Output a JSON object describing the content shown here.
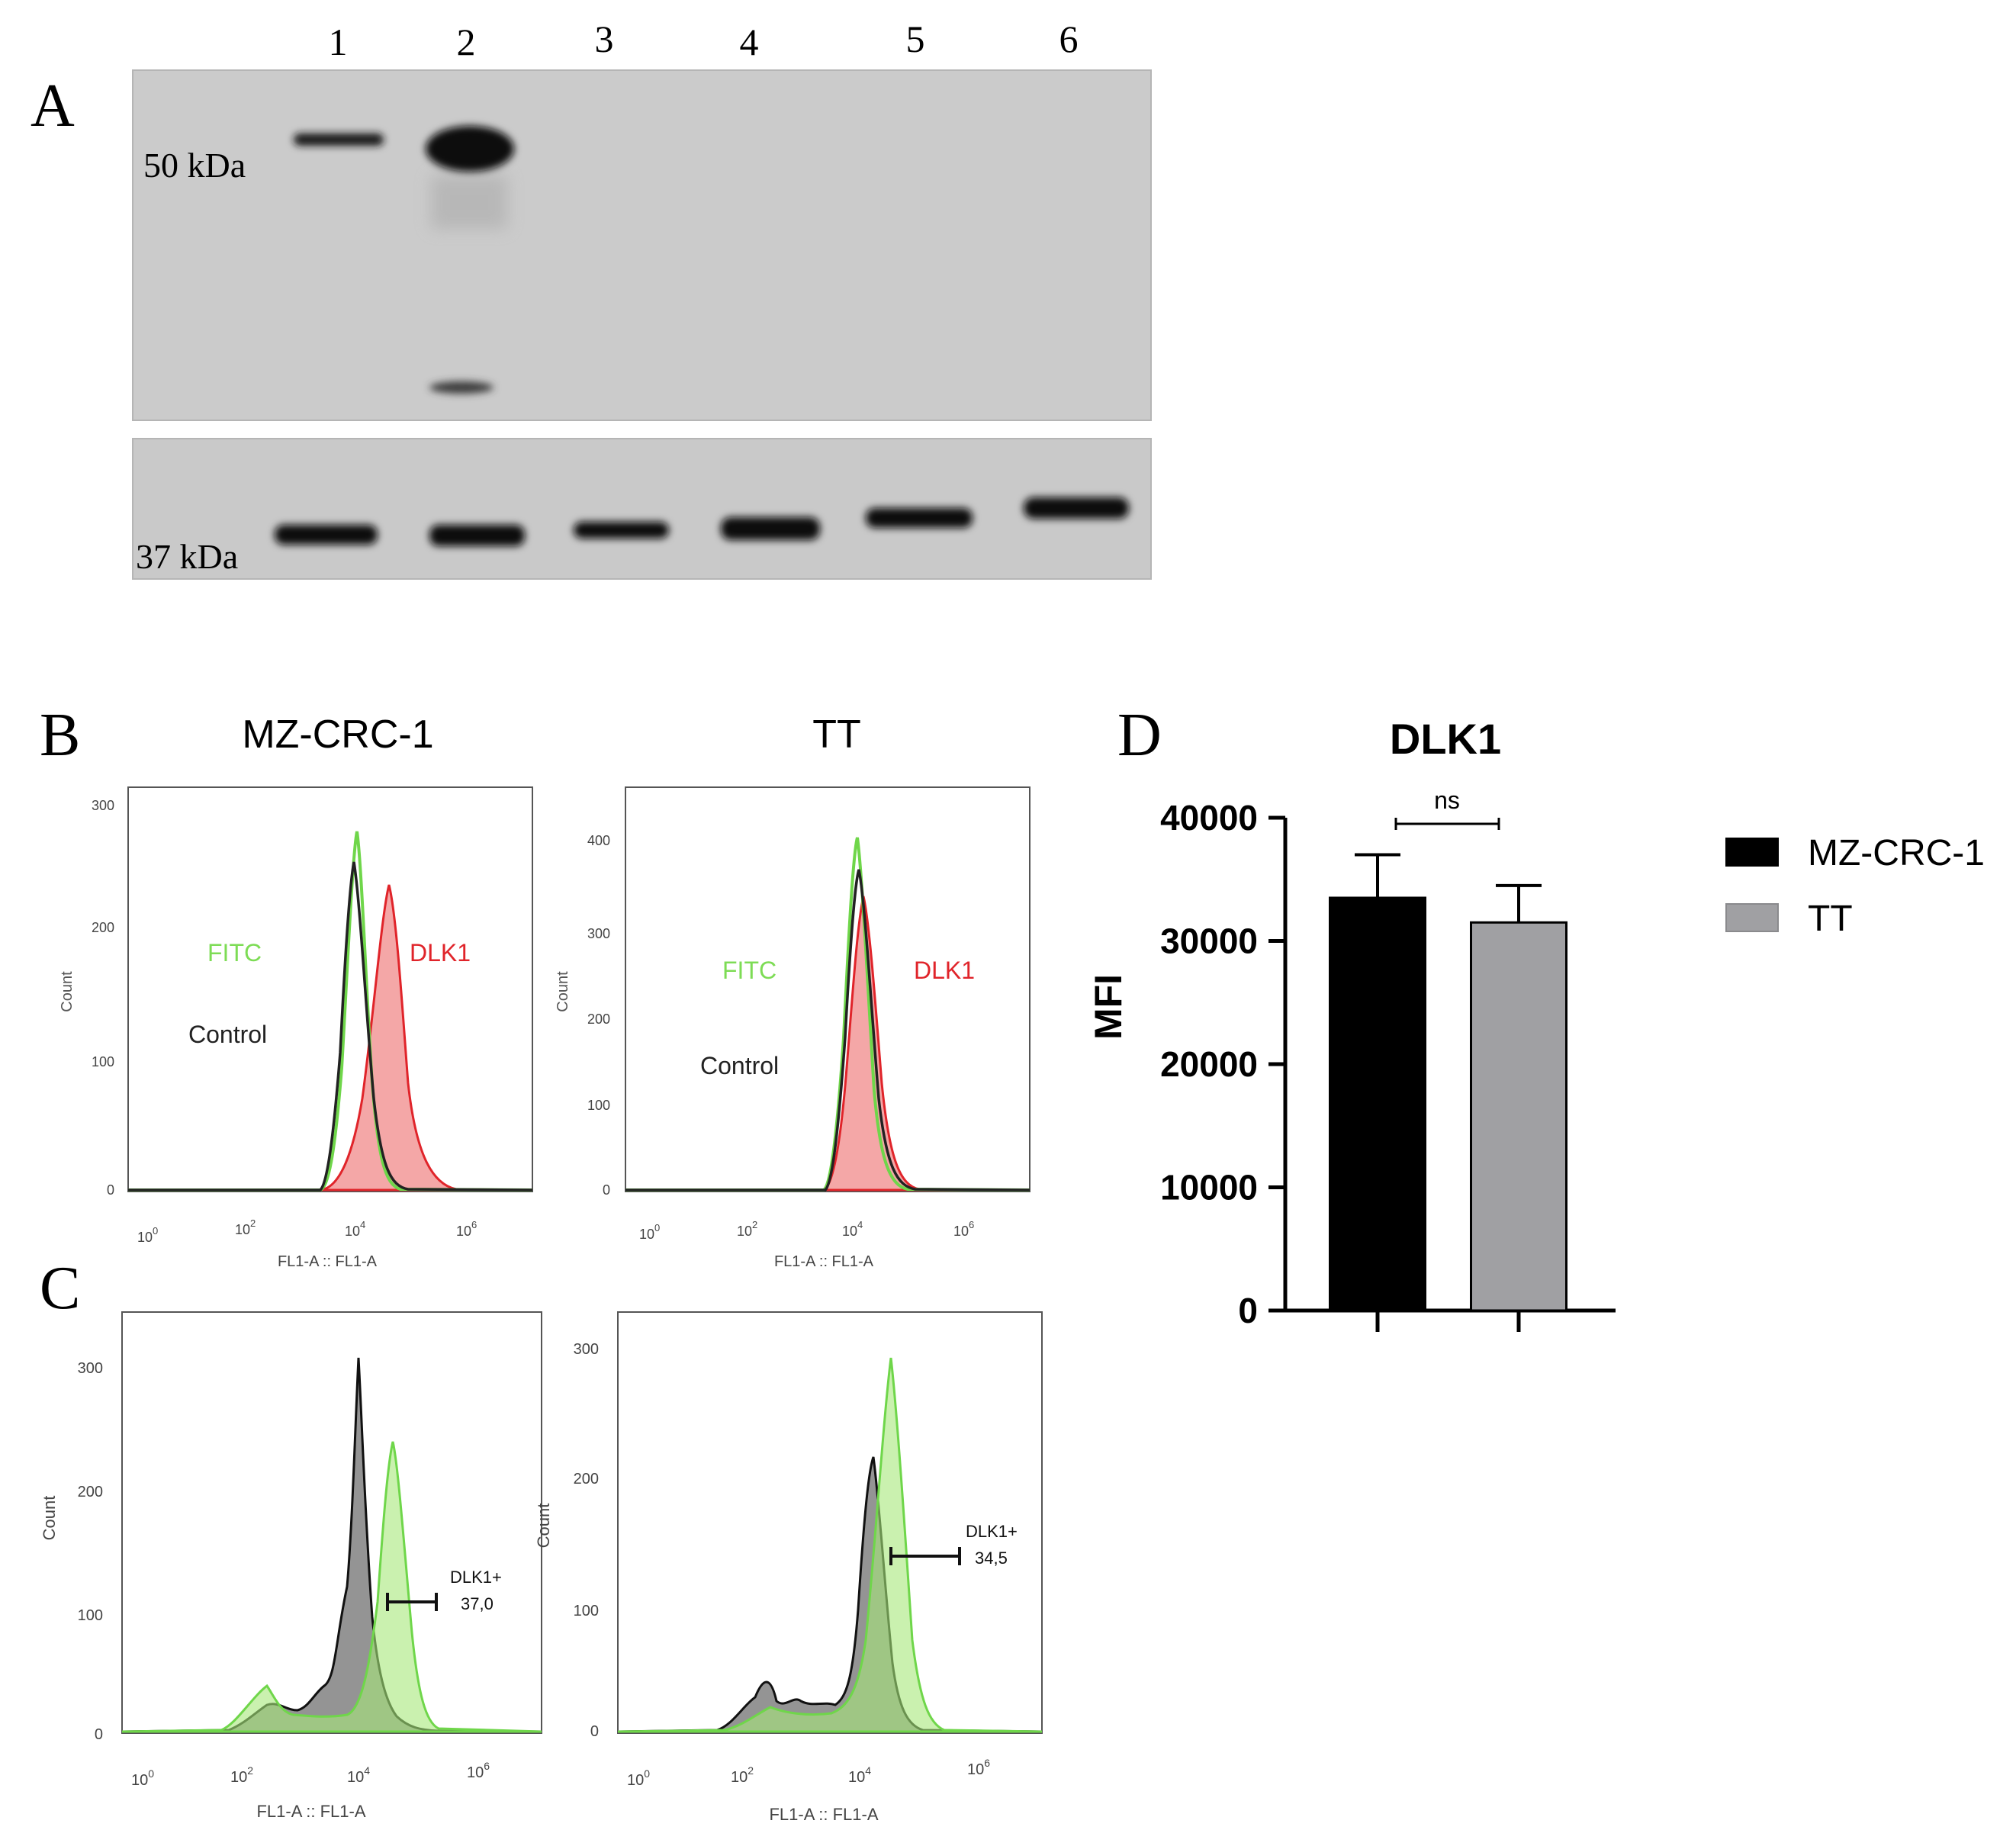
{
  "panels": {
    "A": "A",
    "B": "B",
    "C": "C",
    "D": "D"
  },
  "western_blot": {
    "lanes": [
      "1",
      "2",
      "3",
      "4",
      "5",
      "6"
    ],
    "upper_marker": "50 kDa",
    "lower_marker": "37 kDa"
  },
  "flow_B": {
    "left_title": "MZ-CRC-1",
    "right_title": "TT",
    "fitc_label": "FITC",
    "dlk1_label": "DLK1",
    "control_label": "Control",
    "y_label": "Count",
    "x_label": "FL1-A :: FL1-A",
    "left_yticks": [
      "300",
      "200",
      "100",
      "0"
    ],
    "right_yticks": [
      "400",
      "300",
      "200",
      "100",
      "0"
    ],
    "x_tick_base": "10",
    "x_tick_exps": [
      "0",
      "2",
      "4",
      "6"
    ]
  },
  "flow_C": {
    "y_label": "Count",
    "x_label": "FL1-A :: FL1-A",
    "left_yticks": [
      "300",
      "200",
      "100",
      "0"
    ],
    "right_yticks": [
      "300",
      "200",
      "100",
      "0"
    ],
    "gate_label": "DLK1+",
    "left_gate_value": "37,0",
    "right_gate_value": "34,5",
    "x_tick_base": "10",
    "x_tick_exps": [
      "0",
      "2",
      "4",
      "6"
    ]
  },
  "chart_data": {
    "type": "bar",
    "title": "DLK1",
    "ylabel": "MFI",
    "xlabel": "",
    "categories": [
      "MZ-CRC-1",
      "TT"
    ],
    "values": [
      33500,
      31500
    ],
    "errors": [
      3500,
      3000
    ],
    "ylim": [
      0,
      40000
    ],
    "yticks": [
      "0",
      "10000",
      "20000",
      "30000",
      "40000"
    ],
    "colors": [
      "#000000",
      "#a0a0a3"
    ],
    "legend": [
      "MZ-CRC-1",
      "TT"
    ],
    "legend_position": "right",
    "significance": "ns"
  },
  "colors": {
    "fitc_green": "#6fd64a",
    "dlk1_red": "#e0242a",
    "control_black": "#111111",
    "blot_bg": "#c9c9c9"
  }
}
